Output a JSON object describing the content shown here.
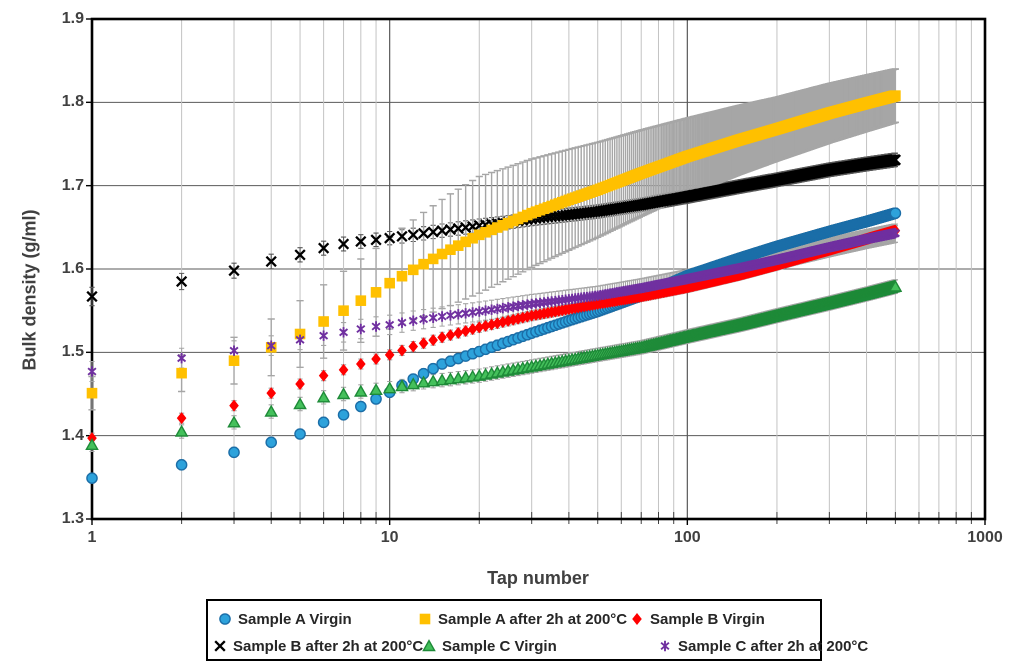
{
  "figure": {
    "background": "#ffffff",
    "text_color": "#404040"
  },
  "chart_data": {
    "type": "scatter",
    "title": "",
    "xlabel": "Tap number",
    "ylabel": "Bulk density (g/ml)",
    "x_scale": "log",
    "xlim": [
      1,
      1000
    ],
    "ylim": [
      1.3,
      1.9
    ],
    "x_ticks": [
      1,
      10,
      100,
      1000
    ],
    "y_tick_step": 0.1,
    "grid": {
      "horizontal_major": true,
      "vertical_major": true,
      "vertical_minor_log": true,
      "major_color": "#595959",
      "minor_color": "#c3c3c3",
      "border_color": "#000000"
    },
    "sampling_note": "Markers plotted at every integer tap number from 1 to 500; values between anchor points are log-linearly interpolated. Error bars (half-widths in g/ml) drawn at every tap.",
    "series": [
      {
        "name": "Sample B after 2h at 200°C",
        "marker": "x",
        "color": "#000000",
        "edge": "#000000",
        "error_color": "#595959",
        "anchors": [
          [
            1,
            1.567
          ],
          [
            2,
            1.585
          ],
          [
            3,
            1.598
          ],
          [
            4,
            1.609
          ],
          [
            5,
            1.617
          ],
          [
            6,
            1.625
          ],
          [
            7,
            1.63
          ],
          [
            8,
            1.633
          ],
          [
            9,
            1.635
          ],
          [
            10,
            1.637
          ],
          [
            12,
            1.641
          ],
          [
            15,
            1.646
          ],
          [
            20,
            1.652
          ],
          [
            25,
            1.656
          ],
          [
            30,
            1.66
          ],
          [
            40,
            1.665
          ],
          [
            50,
            1.669
          ],
          [
            70,
            1.677
          ],
          [
            100,
            1.687
          ],
          [
            150,
            1.699
          ],
          [
            200,
            1.707
          ],
          [
            300,
            1.719
          ],
          [
            400,
            1.726
          ],
          [
            500,
            1.731
          ]
        ],
        "error_halfwidth": [
          [
            1,
            0.011
          ],
          [
            3,
            0.009
          ],
          [
            10,
            0.008
          ],
          [
            500,
            0.008
          ]
        ]
      },
      {
        "name": "Sample A after 2h at 200°C",
        "marker": "square",
        "color": "#FFC000",
        "edge": "#FFC000",
        "error_color": "#a6a6a6",
        "anchors": [
          [
            1,
            1.451
          ],
          [
            2,
            1.475
          ],
          [
            3,
            1.49
          ],
          [
            4,
            1.506
          ],
          [
            5,
            1.522
          ],
          [
            6,
            1.537
          ],
          [
            7,
            1.55
          ],
          [
            8,
            1.562
          ],
          [
            9,
            1.572
          ],
          [
            10,
            1.583
          ],
          [
            12,
            1.599
          ],
          [
            15,
            1.618
          ],
          [
            20,
            1.641
          ],
          [
            25,
            1.655
          ],
          [
            30,
            1.667
          ],
          [
            40,
            1.683
          ],
          [
            50,
            1.695
          ],
          [
            70,
            1.715
          ],
          [
            100,
            1.735
          ],
          [
            150,
            1.755
          ],
          [
            200,
            1.768
          ],
          [
            300,
            1.787
          ],
          [
            400,
            1.799
          ],
          [
            500,
            1.808
          ]
        ],
        "error_halfwidth": [
          [
            1,
            0.02
          ],
          [
            2,
            0.022
          ],
          [
            3,
            0.028
          ],
          [
            4,
            0.034
          ],
          [
            5,
            0.04
          ],
          [
            6,
            0.044
          ],
          [
            8,
            0.05
          ],
          [
            10,
            0.055
          ],
          [
            13,
            0.062
          ],
          [
            16,
            0.067
          ],
          [
            20,
            0.07
          ],
          [
            30,
            0.065
          ],
          [
            50,
            0.057
          ],
          [
            100,
            0.046
          ],
          [
            200,
            0.038
          ],
          [
            500,
            0.032
          ]
        ]
      },
      {
        "name": "Sample A Virgin",
        "marker": "circle",
        "color": "#2DA2DB",
        "edge": "#1B6EA8",
        "error_color": "#a6a6a6",
        "anchors": [
          [
            1,
            1.349
          ],
          [
            2,
            1.365
          ],
          [
            3,
            1.38
          ],
          [
            4,
            1.392
          ],
          [
            5,
            1.402
          ],
          [
            6,
            1.416
          ],
          [
            7,
            1.425
          ],
          [
            8,
            1.435
          ],
          [
            9,
            1.444
          ],
          [
            10,
            1.452
          ],
          [
            12,
            1.468
          ],
          [
            15,
            1.486
          ],
          [
            20,
            1.501
          ],
          [
            25,
            1.513
          ],
          [
            30,
            1.523
          ],
          [
            40,
            1.538
          ],
          [
            50,
            1.549
          ],
          [
            70,
            1.568
          ],
          [
            100,
            1.592
          ],
          [
            150,
            1.613
          ],
          [
            200,
            1.627
          ],
          [
            300,
            1.645
          ],
          [
            400,
            1.657
          ],
          [
            500,
            1.667
          ]
        ],
        "error_halfwidth": [
          [
            1,
            0.006
          ],
          [
            500,
            0.006
          ]
        ]
      },
      {
        "name": "Sample B Virgin",
        "marker": "diamond",
        "color": "#FF0000",
        "edge": "#C00000",
        "error_color": "#a6a6a6",
        "anchors": [
          [
            1,
            1.397
          ],
          [
            2,
            1.421
          ],
          [
            3,
            1.436
          ],
          [
            4,
            1.451
          ],
          [
            5,
            1.462
          ],
          [
            6,
            1.472
          ],
          [
            7,
            1.479
          ],
          [
            8,
            1.486
          ],
          [
            9,
            1.492
          ],
          [
            10,
            1.497
          ],
          [
            12,
            1.507
          ],
          [
            15,
            1.518
          ],
          [
            20,
            1.53
          ],
          [
            30,
            1.544
          ],
          [
            50,
            1.558
          ],
          [
            70,
            1.567
          ],
          [
            100,
            1.578
          ],
          [
            150,
            1.593
          ],
          [
            200,
            1.605
          ],
          [
            300,
            1.623
          ],
          [
            400,
            1.636
          ],
          [
            500,
            1.646
          ]
        ],
        "error_halfwidth": [
          [
            1,
            0.006
          ],
          [
            500,
            0.006
          ]
        ]
      },
      {
        "name": "Sample C after 2h at 200°C",
        "marker": "asterisk",
        "color": "#7030A0",
        "edge": "#7030A0",
        "error_color": "#a6a6a6",
        "anchors": [
          [
            1,
            1.477
          ],
          [
            2,
            1.493
          ],
          [
            3,
            1.502
          ],
          [
            4,
            1.508
          ],
          [
            5,
            1.515
          ],
          [
            6,
            1.52
          ],
          [
            7,
            1.524
          ],
          [
            8,
            1.528
          ],
          [
            9,
            1.531
          ],
          [
            10,
            1.533
          ],
          [
            12,
            1.538
          ],
          [
            15,
            1.543
          ],
          [
            20,
            1.549
          ],
          [
            30,
            1.558
          ],
          [
            50,
            1.568
          ],
          [
            70,
            1.577
          ],
          [
            100,
            1.588
          ],
          [
            150,
            1.601
          ],
          [
            200,
            1.611
          ],
          [
            300,
            1.626
          ],
          [
            400,
            1.636
          ],
          [
            500,
            1.643
          ]
        ],
        "error_halfwidth": [
          [
            1,
            0.012
          ],
          [
            500,
            0.011
          ]
        ]
      },
      {
        "name": "Sample C Virgin",
        "marker": "triangle",
        "color": "#44C05B",
        "edge": "#1E8A38",
        "error_color": "#a6a6a6",
        "anchors": [
          [
            1,
            1.389
          ],
          [
            2,
            1.405
          ],
          [
            3,
            1.416
          ],
          [
            4,
            1.429
          ],
          [
            5,
            1.438
          ],
          [
            6,
            1.446
          ],
          [
            7,
            1.45
          ],
          [
            8,
            1.453
          ],
          [
            9,
            1.455
          ],
          [
            10,
            1.457
          ],
          [
            13,
            1.464
          ],
          [
            20,
            1.472
          ],
          [
            30,
            1.483
          ],
          [
            50,
            1.497
          ],
          [
            70,
            1.506
          ],
          [
            100,
            1.519
          ],
          [
            150,
            1.533
          ],
          [
            200,
            1.544
          ],
          [
            300,
            1.559
          ],
          [
            400,
            1.57
          ],
          [
            500,
            1.579
          ]
        ],
        "error_halfwidth": [
          [
            1,
            0.008
          ],
          [
            500,
            0.008
          ]
        ]
      }
    ]
  },
  "legend": {
    "border_color": "#000000",
    "rows": [
      [
        "Sample A Virgin",
        "Sample A after 2h at 200°C",
        "Sample B Virgin"
      ],
      [
        "Sample B after 2h at 200°C",
        "Sample C Virgin",
        "Sample C after 2h at 200°C"
      ]
    ]
  }
}
